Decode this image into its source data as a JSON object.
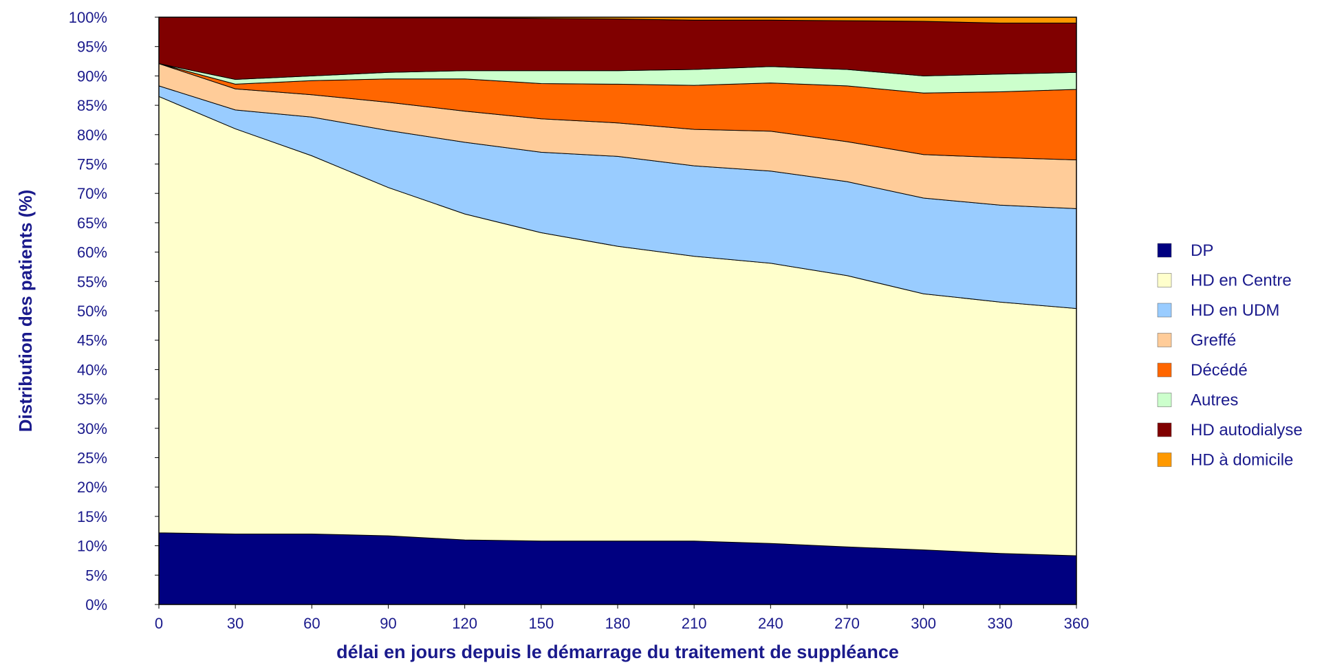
{
  "chart_data": {
    "type": "area",
    "stacked": true,
    "percent": true,
    "xlabel": "délai en jours depuis le démarrage du traitement de suppléance",
    "ylabel": "Distribution des patients (%)",
    "x": [
      0,
      30,
      60,
      90,
      120,
      150,
      180,
      210,
      240,
      270,
      300,
      330,
      360
    ],
    "xlim": [
      0,
      360
    ],
    "ylim": [
      0,
      100
    ],
    "y_ticks": [
      "0%",
      "5%",
      "10%",
      "15%",
      "20%",
      "25%",
      "30%",
      "35%",
      "40%",
      "45%",
      "50%",
      "55%",
      "60%",
      "65%",
      "70%",
      "75%",
      "80%",
      "85%",
      "90%",
      "95%",
      "100%"
    ],
    "x_ticks": [
      "0",
      "30",
      "60",
      "90",
      "120",
      "150",
      "180",
      "210",
      "240",
      "270",
      "300",
      "330",
      "360"
    ],
    "grid": false,
    "legend_position": "right",
    "series": [
      {
        "name": "DP",
        "color": "#000080",
        "values": [
          12.2,
          12.0,
          12.0,
          11.7,
          11.0,
          10.8,
          10.8,
          10.8,
          10.4,
          9.8,
          9.3,
          8.7,
          8.3
        ]
      },
      {
        "name": "HD en Centre",
        "color": "#ffffcc",
        "values": [
          74.3,
          69.0,
          64.4,
          59.3,
          55.5,
          52.5,
          50.2,
          48.5,
          47.7,
          46.2,
          43.6,
          42.8,
          42.1
        ]
      },
      {
        "name": "HD en UDM",
        "color": "#99ccff",
        "values": [
          1.8,
          3.2,
          6.6,
          9.7,
          12.2,
          13.7,
          15.3,
          15.4,
          15.7,
          16.0,
          16.3,
          16.5,
          17.0
        ]
      },
      {
        "name": "Greffé",
        "color": "#ffcc99",
        "values": [
          3.8,
          3.6,
          3.8,
          4.8,
          5.3,
          5.7,
          5.7,
          6.2,
          6.8,
          6.8,
          7.4,
          8.1,
          8.3
        ]
      },
      {
        "name": "Décédé",
        "color": "#ff6600",
        "values": [
          0.0,
          0.8,
          2.4,
          4.0,
          5.5,
          6.0,
          6.6,
          7.5,
          8.2,
          9.5,
          10.5,
          11.2,
          12.0
        ]
      },
      {
        "name": "Autres",
        "color": "#ccffcc",
        "values": [
          0.0,
          0.8,
          0.8,
          1.1,
          1.4,
          2.2,
          2.3,
          2.7,
          2.8,
          2.8,
          2.9,
          3.0,
          2.9
        ]
      },
      {
        "name": "HD autodialyse",
        "color": "#800000",
        "values": [
          7.9,
          10.6,
          10.0,
          9.3,
          9.0,
          8.9,
          8.8,
          8.4,
          7.9,
          8.3,
          9.3,
          8.7,
          8.4
        ]
      },
      {
        "name": "HD à domicile",
        "color": "#ff9900",
        "values": [
          0.0,
          0.0,
          0.0,
          0.1,
          0.1,
          0.2,
          0.3,
          0.5,
          0.5,
          0.6,
          0.7,
          1.0,
          1.0
        ]
      }
    ]
  }
}
